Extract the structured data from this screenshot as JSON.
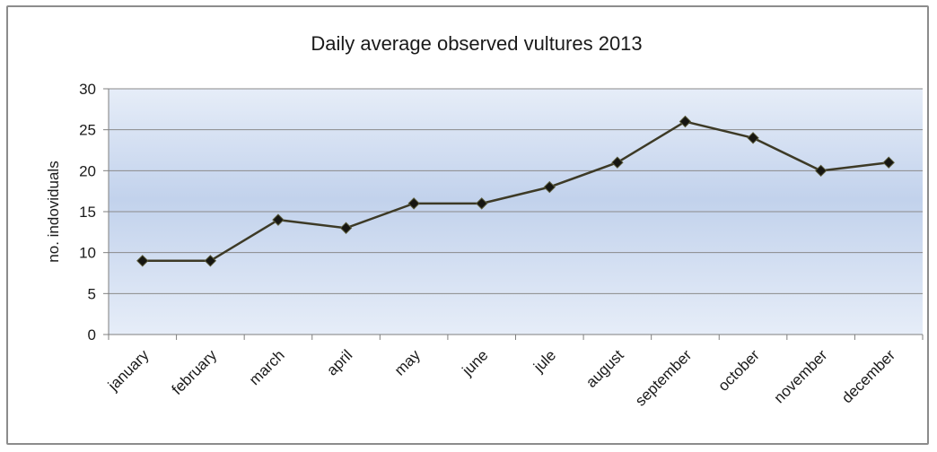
{
  "chart_data": {
    "type": "line",
    "title": "Daily average observed vultures 2013",
    "xlabel": "",
    "ylabel": "no. indoviduals",
    "ylim": [
      0,
      30
    ],
    "yticks": [
      "0",
      "5",
      "10",
      "15",
      "20",
      "25",
      "30"
    ],
    "categories": [
      "january",
      "february",
      "march",
      "april",
      "may",
      "june",
      "jule",
      "august",
      "september",
      "october",
      "november",
      "december"
    ],
    "series": [
      {
        "values": [
          9,
          9,
          14,
          13,
          16,
          16,
          18,
          21,
          26,
          24,
          20,
          21
        ]
      }
    ],
    "grid": true,
    "legend": "none",
    "colors": {
      "line": "#3d3a26",
      "marker": "#161612",
      "gridline": "#8a8a8a",
      "plot_top": "#e6edf8",
      "plot_mid": "#c2d2ec",
      "plot_bottom": "#e6edf8"
    }
  }
}
